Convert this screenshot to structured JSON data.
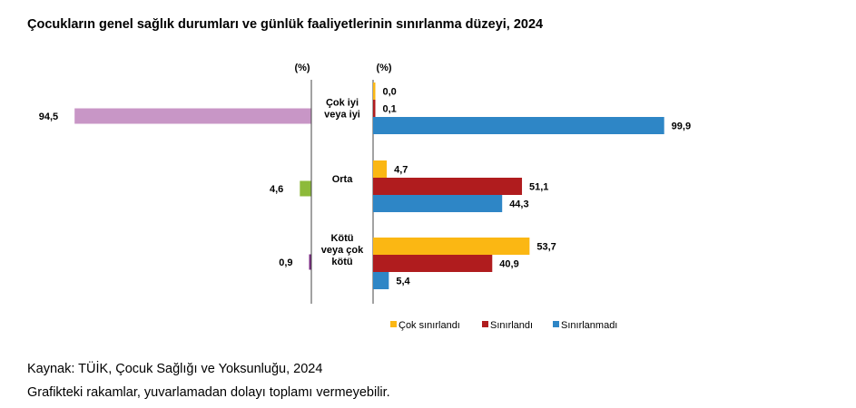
{
  "title": "Çocukların genel sağlık durumları ve günlük faaliyetlerinin sınırlanma düzeyi, 2024",
  "source": "Kaynak: TÜİK, Çocuk Sağlığı ve Yoksunluğu, 2024",
  "note": "Grafikteki rakamlar, yuvarlamadan dolayı toplamı vermeyebilir.",
  "chart_data": [
    {
      "type": "bar",
      "orientation": "horizontal",
      "unit_label": "(%)",
      "categories": [
        "Çok iyi veya iyi",
        "Orta",
        "Kötü veya çok kötü"
      ],
      "category_lines": [
        [
          "Çok iyi",
          "veya iyi"
        ],
        [
          "Orta"
        ],
        [
          "Kötü",
          "veya çok",
          "kötü"
        ]
      ],
      "values": [
        94.5,
        4.6,
        0.9
      ],
      "value_labels": [
        "94,5",
        "4,6",
        "0,9"
      ],
      "colors": [
        "#c896c6",
        "#8dba3a",
        "#7a2a82"
      ],
      "xlim": [
        0,
        100
      ]
    },
    {
      "type": "bar",
      "orientation": "horizontal",
      "unit_label": "(%)",
      "categories": [
        "Çok iyi veya iyi",
        "Orta",
        "Kötü veya çok kötü"
      ],
      "series": [
        {
          "name": "Çok sınırlandı",
          "color": "#fbb713",
          "values": [
            0.0,
            4.7,
            53.7
          ],
          "labels": [
            "0,0",
            "4,7",
            "53,7"
          ]
        },
        {
          "name": "Sınırlandı",
          "color": "#b01c1e",
          "values": [
            0.1,
            51.1,
            40.9
          ],
          "labels": [
            "0,1",
            "51,1",
            "40,9"
          ]
        },
        {
          "name": "Sınırlanmadı",
          "color": "#2e86c6",
          "values": [
            99.9,
            44.3,
            5.4
          ],
          "labels": [
            "99,9",
            "44,3",
            "5,4"
          ]
        }
      ],
      "xlim": [
        0,
        100
      ],
      "legend": "bottom"
    }
  ]
}
